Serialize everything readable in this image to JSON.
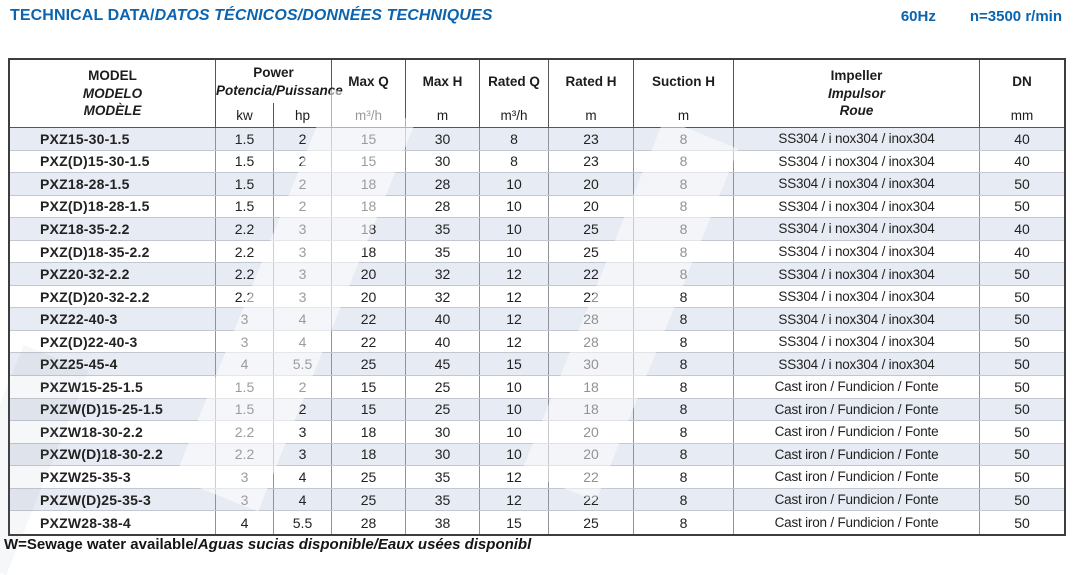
{
  "header": {
    "title_main": "TECHNICAL DATA/",
    "title_italic": "DATOS TÉCNICOS/DONNÉES TECHNIQUES",
    "frequency": "60Hz",
    "speed": "n=3500 r/min"
  },
  "table": {
    "columns": {
      "model": {
        "line1": "MODEL",
        "line2": "MODELO",
        "line3": "MODÈLE"
      },
      "power": {
        "label": "Power",
        "sublabel": "Potencia/Puissance",
        "unit_kw": "kw",
        "unit_hp": "hp"
      },
      "max_q": {
        "label": "Max Q",
        "unit": "m³/h"
      },
      "max_h": {
        "label": "Max H",
        "unit": "m"
      },
      "rated_q": {
        "label": "Rated Q",
        "unit": "m³/h"
      },
      "rated_h": {
        "label": "Rated H",
        "unit": "m"
      },
      "suction_h": {
        "label": "Suction H",
        "unit": "m"
      },
      "impeller": {
        "line1": "Impeller",
        "line2": "Impulsor",
        "line3": "Roue"
      },
      "dn": {
        "label": "DN",
        "unit": "mm"
      }
    },
    "rows": [
      {
        "model": "PXZ15-30-1.5",
        "kw": "1.5",
        "hp": "2",
        "max_q": "15",
        "max_h": "30",
        "rated_q": "8",
        "rated_h": "23",
        "suction_h": "8",
        "impeller": "SS304 / i nox304 / inox304",
        "dn": "40"
      },
      {
        "model": "PXZ(D)15-30-1.5",
        "kw": "1.5",
        "hp": "2",
        "max_q": "15",
        "max_h": "30",
        "rated_q": "8",
        "rated_h": "23",
        "suction_h": "8",
        "impeller": "SS304 / i nox304 / inox304",
        "dn": "40"
      },
      {
        "model": "PXZ18-28-1.5",
        "kw": "1.5",
        "hp": "2",
        "max_q": "18",
        "max_h": "28",
        "rated_q": "10",
        "rated_h": "20",
        "suction_h": "8",
        "impeller": "SS304 / i nox304 / inox304",
        "dn": "50"
      },
      {
        "model": "PXZ(D)18-28-1.5",
        "kw": "1.5",
        "hp": "2",
        "max_q": "18",
        "max_h": "28",
        "rated_q": "10",
        "rated_h": "20",
        "suction_h": "8",
        "impeller": "SS304 / i nox304 / inox304",
        "dn": "50"
      },
      {
        "model": "PXZ18-35-2.2",
        "kw": "2.2",
        "hp": "3",
        "max_q": "18",
        "max_h": "35",
        "rated_q": "10",
        "rated_h": "25",
        "suction_h": "8",
        "impeller": "SS304 / i nox304 / inox304",
        "dn": "40"
      },
      {
        "model": "PXZ(D)18-35-2.2",
        "kw": "2.2",
        "hp": "3",
        "max_q": "18",
        "max_h": "35",
        "rated_q": "10",
        "rated_h": "25",
        "suction_h": "8",
        "impeller": "SS304 / i nox304 / inox304",
        "dn": "40"
      },
      {
        "model": "PXZ20-32-2.2",
        "kw": "2.2",
        "hp": "3",
        "max_q": "20",
        "max_h": "32",
        "rated_q": "12",
        "rated_h": "22",
        "suction_h": "8",
        "impeller": "SS304 / i nox304 / inox304",
        "dn": "50"
      },
      {
        "model": "PXZ(D)20-32-2.2",
        "kw": "2.2",
        "hp": "3",
        "max_q": "20",
        "max_h": "32",
        "rated_q": "12",
        "rated_h": "22",
        "suction_h": "8",
        "impeller": "SS304 / i nox304 / inox304",
        "dn": "50"
      },
      {
        "model": "PXZ22-40-3",
        "kw": "3",
        "hp": "4",
        "max_q": "22",
        "max_h": "40",
        "rated_q": "12",
        "rated_h": "28",
        "suction_h": "8",
        "impeller": "SS304 / i nox304 / inox304",
        "dn": "50"
      },
      {
        "model": "PXZ(D)22-40-3",
        "kw": "3",
        "hp": "4",
        "max_q": "22",
        "max_h": "40",
        "rated_q": "12",
        "rated_h": "28",
        "suction_h": "8",
        "impeller": "SS304 / i nox304 / inox304",
        "dn": "50"
      },
      {
        "model": "PXZ25-45-4",
        "kw": "4",
        "hp": "5.5",
        "max_q": "25",
        "max_h": "45",
        "rated_q": "15",
        "rated_h": "30",
        "suction_h": "8",
        "impeller": "SS304 / i nox304 / inox304",
        "dn": "50"
      },
      {
        "model": "PXZW15-25-1.5",
        "kw": "1.5",
        "hp": "2",
        "max_q": "15",
        "max_h": "25",
        "rated_q": "10",
        "rated_h": "18",
        "suction_h": "8",
        "impeller": "Cast iron / Fundicion / Fonte",
        "dn": "50"
      },
      {
        "model": "PXZW(D)15-25-1.5",
        "kw": "1.5",
        "hp": "2",
        "max_q": "15",
        "max_h": "25",
        "rated_q": "10",
        "rated_h": "18",
        "suction_h": "8",
        "impeller": "Cast iron / Fundicion / Fonte",
        "dn": "50"
      },
      {
        "model": "PXZW18-30-2.2",
        "kw": "2.2",
        "hp": "3",
        "max_q": "18",
        "max_h": "30",
        "rated_q": "10",
        "rated_h": "20",
        "suction_h": "8",
        "impeller": "Cast iron / Fundicion / Fonte",
        "dn": "50"
      },
      {
        "model": "PXZW(D)18-30-2.2",
        "kw": "2.2",
        "hp": "3",
        "max_q": "18",
        "max_h": "30",
        "rated_q": "10",
        "rated_h": "20",
        "suction_h": "8",
        "impeller": "Cast iron / Fundicion / Fonte",
        "dn": "50"
      },
      {
        "model": "PXZW25-35-3",
        "kw": "3",
        "hp": "4",
        "max_q": "25",
        "max_h": "35",
        "rated_q": "12",
        "rated_h": "22",
        "suction_h": "8",
        "impeller": "Cast iron / Fundicion / Fonte",
        "dn": "50"
      },
      {
        "model": "PXZW(D)25-35-3",
        "kw": "3",
        "hp": "4",
        "max_q": "25",
        "max_h": "35",
        "rated_q": "12",
        "rated_h": "22",
        "suction_h": "8",
        "impeller": "Cast iron / Fundicion / Fonte",
        "dn": "50"
      },
      {
        "model": "PXZW28-38-4",
        "kw": "4",
        "hp": "5.5",
        "max_q": "28",
        "max_h": "38",
        "rated_q": "15",
        "rated_h": "25",
        "suction_h": "8",
        "impeller": "Cast iron / Fundicion / Fonte",
        "dn": "50"
      }
    ]
  },
  "footer": {
    "note_main": "W=Sewage water available/",
    "note_italic": "Aguas sucias disponible/Eaux usées disponibl"
  },
  "colors": {
    "accent_blue": "#0a64b0",
    "row_stripe": "#e7ebf3",
    "text": "#1c1c1c"
  }
}
